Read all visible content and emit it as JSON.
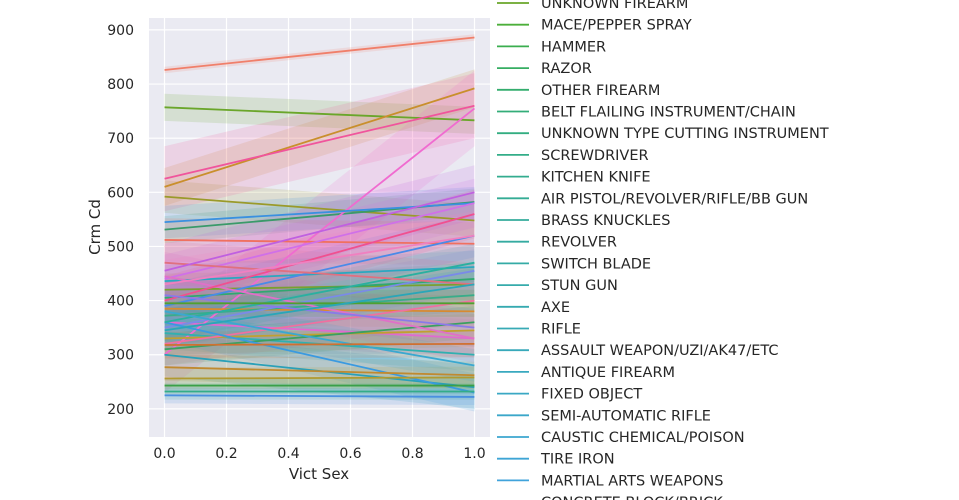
{
  "chart_data": {
    "type": "line",
    "title": "",
    "xlabel": "Vict Sex",
    "ylabel": "Crm Cd",
    "xlim": [
      -0.05,
      1.05
    ],
    "ylim": [
      148,
      922
    ],
    "x_ticks": [
      "0.0",
      "0.2",
      "0.4",
      "0.6",
      "0.8",
      "1.0"
    ],
    "y_ticks": [
      "200",
      "300",
      "400",
      "500",
      "600",
      "700",
      "800",
      "900"
    ],
    "grid": true,
    "legend_position": "right",
    "legend_entries": [
      {
        "label": "UNKNOWN FIREARM",
        "color": "#6aa62a"
      },
      {
        "label": "MACE/PEPPER SPRAY",
        "color": "#4caf3a"
      },
      {
        "label": "HAMMER",
        "color": "#3aae4f"
      },
      {
        "label": "RAZOR",
        "color": "#36ad62"
      },
      {
        "label": "OTHER FIREARM",
        "color": "#34ad6e"
      },
      {
        "label": "BELT FLAILING INSTRUMENT/CHAIN",
        "color": "#33ad79"
      },
      {
        "label": "UNKNOWN TYPE CUTTING INSTRUMENT",
        "color": "#33ad81"
      },
      {
        "label": "SCREWDRIVER",
        "color": "#33ad88"
      },
      {
        "label": "KITCHEN KNIFE",
        "color": "#33ac8f"
      },
      {
        "label": "AIR PISTOL/REVOLVER/RIFLE/BB GUN",
        "color": "#34ac95"
      },
      {
        "label": "BRASS KNUCKLES",
        "color": "#34ac9b"
      },
      {
        "label": "REVOLVER",
        "color": "#35aba1"
      },
      {
        "label": "SWITCH BLADE",
        "color": "#35aba6"
      },
      {
        "label": "STUN GUN",
        "color": "#36abab"
      },
      {
        "label": "AXE",
        "color": "#36aab0"
      },
      {
        "label": "RIFLE",
        "color": "#37aab5"
      },
      {
        "label": "ASSAULT WEAPON/UZI/AK47/ETC",
        "color": "#38a9ba"
      },
      {
        "label": "ANTIQUE FIREARM",
        "color": "#39a9bf"
      },
      {
        "label": "FIXED OBJECT",
        "color": "#3aa8c4"
      },
      {
        "label": "SEMI-AUTOMATIC RIFLE",
        "color": "#3ba7c9"
      },
      {
        "label": "CAUSTIC CHEMICAL/POISON",
        "color": "#3ca6cf"
      },
      {
        "label": "TIRE IRON",
        "color": "#3ea5d5"
      },
      {
        "label": "MARTIAL ARTS WEAPONS",
        "color": "#40a3db"
      },
      {
        "label": "CONCRETE BLOCK/BRICK",
        "color": "#42a1e2"
      }
    ],
    "series": [
      {
        "x": [
          0,
          1
        ],
        "y": [
          826,
          886
        ],
        "color": "#f07f6a",
        "band": 6
      },
      {
        "x": [
          0,
          1
        ],
        "y": [
          757,
          733
        ],
        "color": "#6aa62a",
        "band": 25
      },
      {
        "x": [
          0,
          1
        ],
        "y": [
          610,
          792
        ],
        "color": "#c98f2c",
        "band": 35
      },
      {
        "x": [
          0,
          1
        ],
        "y": [
          592,
          548
        ],
        "color": "#9a9a2a",
        "band": 30
      },
      {
        "x": [
          0,
          1
        ],
        "y": [
          531,
          582
        ],
        "color": "#3a9a6a",
        "band": 25
      },
      {
        "x": [
          0,
          1
        ],
        "y": [
          625,
          760
        ],
        "color": "#f0559c",
        "band": 60
      },
      {
        "x": [
          0,
          1
        ],
        "y": [
          300,
          755
        ],
        "color": "#f06bd0",
        "band": 70
      },
      {
        "x": [
          0,
          1
        ],
        "y": [
          545,
          580
        ],
        "color": "#3a90e0",
        "band": 30
      },
      {
        "x": [
          0,
          1
        ],
        "y": [
          512,
          505
        ],
        "color": "#f07060",
        "band": 40
      },
      {
        "x": [
          0,
          1
        ],
        "y": [
          440,
          580
        ],
        "color": "#d070e8",
        "band": 45
      },
      {
        "x": [
          0,
          1
        ],
        "y": [
          436,
          462
        ],
        "color": "#2aa8c0",
        "band": 30
      },
      {
        "x": [
          0,
          1
        ],
        "y": [
          420,
          430
        ],
        "color": "#7aa030",
        "band": 30
      },
      {
        "x": [
          0,
          1
        ],
        "y": [
          405,
          440
        ],
        "color": "#30a870",
        "band": 30
      },
      {
        "x": [
          0,
          1
        ],
        "y": [
          390,
          520
        ],
        "color": "#4a8ae8",
        "band": 40
      },
      {
        "x": [
          0,
          1
        ],
        "y": [
          385,
          380
        ],
        "color": "#d88a30",
        "band": 30
      },
      {
        "x": [
          0,
          1
        ],
        "y": [
          372,
          410
        ],
        "color": "#38ad8a",
        "band": 30
      },
      {
        "x": [
          0,
          1
        ],
        "y": [
          360,
          330
        ],
        "color": "#e06ad0",
        "band": 35
      },
      {
        "x": [
          0,
          1
        ],
        "y": [
          350,
          455
        ],
        "color": "#7a8ae8",
        "band": 40
      },
      {
        "x": [
          0,
          1
        ],
        "y": [
          340,
          300
        ],
        "color": "#30b0b0",
        "band": 30
      },
      {
        "x": [
          0,
          1
        ],
        "y": [
          330,
          345
        ],
        "color": "#c0a030",
        "band": 30
      },
      {
        "x": [
          0,
          1
        ],
        "y": [
          320,
          400
        ],
        "color": "#f070a0",
        "band": 40
      },
      {
        "x": [
          0,
          1
        ],
        "y": [
          310,
          360
        ],
        "color": "#3aa060",
        "band": 30
      },
      {
        "x": [
          0,
          1
        ],
        "y": [
          300,
          240
        ],
        "color": "#2aa0b8",
        "band": 40
      },
      {
        "x": [
          0,
          1
        ],
        "y": [
          360,
          230
        ],
        "color": "#3a9ae0",
        "band": 35
      },
      {
        "x": [
          0,
          1
        ],
        "y": [
          277,
          262
        ],
        "color": "#c08a30",
        "band": 25
      },
      {
        "x": [
          0,
          1
        ],
        "y": [
          256,
          258
        ],
        "color": "#b09a30",
        "band": 20
      },
      {
        "x": [
          0,
          1
        ],
        "y": [
          243,
          243
        ],
        "color": "#3aa048",
        "band": 15
      },
      {
        "x": [
          0,
          1
        ],
        "y": [
          232,
          232
        ],
        "color": "#33ad88",
        "band": 15
      },
      {
        "x": [
          0,
          1
        ],
        "y": [
          225,
          222
        ],
        "color": "#4a90e0",
        "band": 15
      },
      {
        "x": [
          0,
          1
        ],
        "y": [
          445,
          330
        ],
        "color": "#e070c8",
        "band": 45
      },
      {
        "x": [
          0,
          1
        ],
        "y": [
          400,
          560
        ],
        "color": "#f05090",
        "band": 45
      },
      {
        "x": [
          0,
          1
        ],
        "y": [
          410,
          350
        ],
        "color": "#8a7ae8",
        "band": 35
      },
      {
        "x": [
          0,
          1
        ],
        "y": [
          360,
          470
        ],
        "color": "#2ab0a0",
        "band": 35
      },
      {
        "x": [
          0,
          1
        ],
        "y": [
          470,
          430
        ],
        "color": "#e07080",
        "band": 40
      },
      {
        "x": [
          0,
          1
        ],
        "y": [
          455,
          600
        ],
        "color": "#c060e0",
        "band": 50
      },
      {
        "x": [
          0,
          1
        ],
        "y": [
          380,
          280
        ],
        "color": "#3aa8d0",
        "band": 30
      },
      {
        "x": [
          0,
          1
        ],
        "y": [
          318,
          320
        ],
        "color": "#d07030",
        "band": 25
      },
      {
        "x": [
          0,
          1
        ],
        "y": [
          395,
          395
        ],
        "color": "#50a030",
        "band": 25
      },
      {
        "x": [
          0,
          1
        ],
        "y": [
          430,
          520
        ],
        "color": "#f080c0",
        "band": 45
      },
      {
        "x": [
          0,
          1
        ],
        "y": [
          345,
          430
        ],
        "color": "#2aa6b8",
        "band": 30
      }
    ]
  }
}
